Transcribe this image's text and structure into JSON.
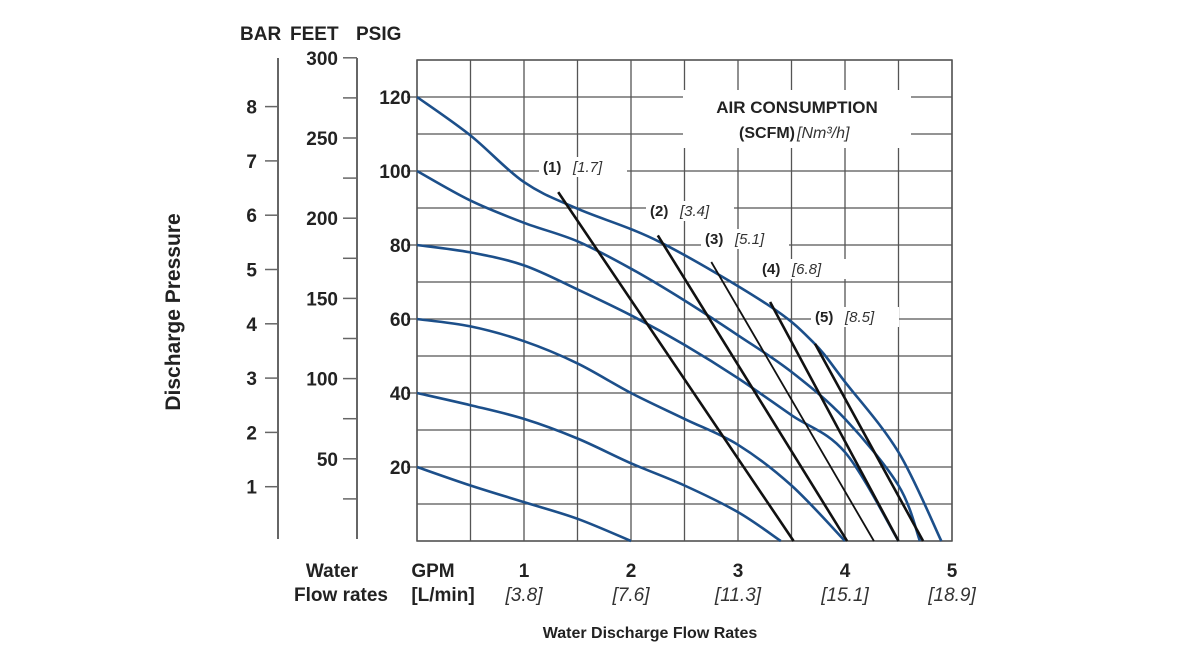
{
  "chart_data": {
    "type": "line",
    "title": "Water Discharge Flow Rates",
    "axis_header": [
      "BAR",
      "FEET",
      "PSIG"
    ],
    "ylabel": "Discharge Pressure",
    "xlabel_left": [
      "Water",
      "Flow rates"
    ],
    "x_unit_labels": [
      "GPM",
      "[L/min]"
    ],
    "xlim": [
      0,
      5
    ],
    "ylim": [
      0,
      130
    ],
    "grid": true,
    "x_ticks": [
      {
        "gpm": 1,
        "label": "1",
        "lmin": "[3.8]"
      },
      {
        "gpm": 2,
        "label": "2",
        "lmin": "[7.6]"
      },
      {
        "gpm": 3,
        "label": "3",
        "lmin": "[11.3]"
      },
      {
        "gpm": 4,
        "label": "4",
        "lmin": "[15.1]"
      },
      {
        "gpm": 5,
        "label": "5",
        "lmin": "[18.9]"
      }
    ],
    "psig_ticks": [
      "20",
      "40",
      "60",
      "80",
      "100",
      "120"
    ],
    "feet_ticks": [
      "50",
      "100",
      "150",
      "200",
      "250",
      "300"
    ],
    "bar_ticks": [
      "1",
      "2",
      "3",
      "4",
      "5",
      "6",
      "7",
      "8"
    ],
    "legend_title": [
      "AIR CONSUMPTION",
      "(SCFM)",
      "[Nm³/h]"
    ],
    "pressure_curves": [
      {
        "name": "120 psig air",
        "points": [
          [
            0,
            120
          ],
          [
            0.5,
            109.6
          ],
          [
            1,
            97
          ],
          [
            1.5,
            89.8
          ],
          [
            2.27,
            80.8
          ],
          [
            3.27,
            64
          ],
          [
            3.7,
            53.8
          ],
          [
            4,
            43
          ],
          [
            4.5,
            24
          ],
          [
            4.9,
            0
          ]
        ]
      },
      {
        "name": "100 psig air",
        "points": [
          [
            0,
            100
          ],
          [
            0.5,
            92
          ],
          [
            1,
            86
          ],
          [
            1.5,
            81
          ],
          [
            2,
            73.6
          ],
          [
            2.5,
            65
          ],
          [
            3,
            55.6
          ],
          [
            3.5,
            45.7
          ],
          [
            4,
            33
          ],
          [
            4.5,
            15
          ],
          [
            4.7,
            0
          ]
        ]
      },
      {
        "name": "80 psig air",
        "points": [
          [
            0,
            80
          ],
          [
            0.5,
            78
          ],
          [
            1,
            74.5
          ],
          [
            1.5,
            68
          ],
          [
            2,
            61
          ],
          [
            2.5,
            53
          ],
          [
            3,
            44
          ],
          [
            3.5,
            34
          ],
          [
            4,
            24
          ],
          [
            4.5,
            0
          ]
        ]
      },
      {
        "name": "60 psig air",
        "points": [
          [
            0,
            60
          ],
          [
            0.5,
            58
          ],
          [
            1,
            54
          ],
          [
            1.5,
            48
          ],
          [
            2,
            40
          ],
          [
            2.5,
            33
          ],
          [
            3,
            26
          ],
          [
            3.5,
            15
          ],
          [
            4,
            0
          ]
        ]
      },
      {
        "name": "40 psig air",
        "points": [
          [
            0,
            40
          ],
          [
            0.5,
            36.7
          ],
          [
            1,
            33
          ],
          [
            1.5,
            27.7
          ],
          [
            2,
            21
          ],
          [
            2.5,
            15
          ],
          [
            3,
            7.8
          ],
          [
            3.4,
            0
          ]
        ]
      },
      {
        "name": "20 psig air",
        "points": [
          [
            0,
            20
          ],
          [
            0.5,
            15
          ],
          [
            1,
            10.5
          ],
          [
            1.5,
            6
          ],
          [
            2,
            0
          ]
        ]
      }
    ],
    "air_consumption_lines": [
      {
        "label": "(1)",
        "metric": "[1.7]",
        "points": [
          [
            1.32,
            94.3
          ],
          [
            3.52,
            0
          ]
        ]
      },
      {
        "label": "(2)",
        "metric": "[3.4]",
        "points": [
          [
            2.25,
            82.6
          ],
          [
            4.02,
            0
          ]
        ]
      },
      {
        "label": "(3)",
        "metric": "[5.1]",
        "points": [
          [
            2.75,
            75.4
          ],
          [
            4.27,
            0
          ]
        ]
      },
      {
        "label": "(4)",
        "metric": "[6.8]",
        "points": [
          [
            3.3,
            64.6
          ],
          [
            4.5,
            0
          ]
        ]
      },
      {
        "label": "(5)",
        "metric": "[8.5]",
        "points": [
          [
            3.72,
            53.3
          ],
          [
            4.73,
            0
          ]
        ]
      }
    ],
    "colors": {
      "curve": "#1c4f8a",
      "air_line": "#111111",
      "grid": "#555555"
    }
  }
}
